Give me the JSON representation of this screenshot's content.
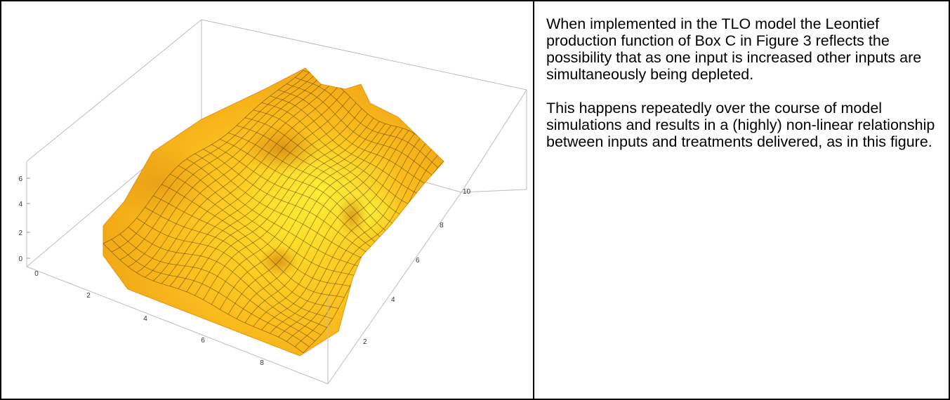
{
  "chart_data": {
    "type": "surface3d",
    "title": "",
    "xlabel": "",
    "ylabel": "",
    "zlabel": "",
    "x_ticks": [
      "0",
      "2",
      "4",
      "6",
      "8"
    ],
    "y_ticks": [
      "2",
      "4",
      "6",
      "8",
      "10"
    ],
    "z_ticks": [
      "0",
      "2",
      "4",
      "6"
    ],
    "x_range": [
      0,
      10
    ],
    "y_range": [
      0,
      10
    ],
    "z_range": [
      0,
      7
    ],
    "grid": false,
    "box": true,
    "mesh": true,
    "colors": {
      "surface_light": "#ffd21e",
      "surface_mid": "#f7aa1c",
      "surface_dark": "#d9800c",
      "mesh": "#333333",
      "box": "#b8b8b8"
    }
  },
  "description": {
    "paragraphs": [
      "When implemented in the TLO model the Leontief production function of Box C in Figure 3 reflects the possibility that as one input is increased other inputs are simultaneously being depleted.",
      "This happens repeatedly over the course of model simulations and results in a (highly) non-linear relationship between inputs and treatments delivered, as in this figure."
    ]
  }
}
